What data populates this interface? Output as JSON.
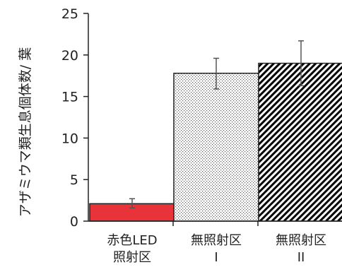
{
  "chart_data": {
    "type": "bar",
    "title": "",
    "xlabel": "",
    "ylabel": "アザミウマ類生息個体数/ 葉",
    "ylim": [
      0,
      25
    ],
    "yticks": [
      0,
      5,
      10,
      15,
      20,
      25
    ],
    "grid": false,
    "legend": "none",
    "categories": [
      {
        "lines": [
          "赤色LED",
          "照射区"
        ]
      },
      {
        "lines": [
          "無照射区",
          "I"
        ]
      },
      {
        "lines": [
          "無照射区",
          "II"
        ]
      }
    ],
    "values": [
      2.1,
      17.8,
      19.0
    ],
    "error_bars": [
      {
        "low": 1.6,
        "high": 2.7
      },
      {
        "low": 15.9,
        "high": 19.6
      },
      {
        "low": 16.3,
        "high": 21.7
      }
    ],
    "fills": [
      {
        "kind": "solid",
        "color": "#e8333a"
      },
      {
        "kind": "dots",
        "color": "#555555"
      },
      {
        "kind": "diagonal-hatch",
        "color": "#000000"
      }
    ],
    "axis_color": "#222222",
    "error_color": "#555555",
    "text_color": "#222222"
  }
}
